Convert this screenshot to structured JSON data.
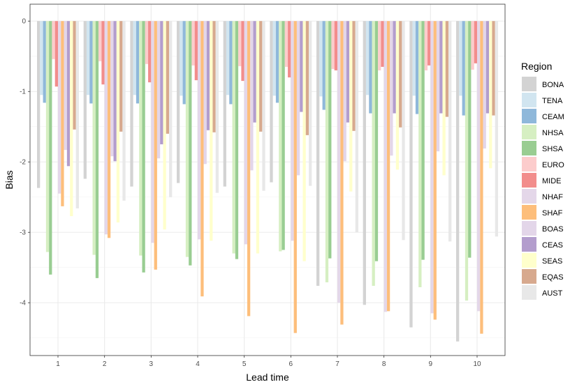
{
  "chart_data": {
    "type": "bar",
    "xlabel": "Lead time",
    "ylabel": "Bias",
    "categories": [
      "1",
      "2",
      "3",
      "4",
      "5",
      "6",
      "7",
      "8",
      "9",
      "10"
    ],
    "yticks": [
      0,
      -1,
      -2,
      -3,
      -4
    ],
    "ytick_labels": [
      "0",
      "-1",
      "-2",
      "-3",
      "-4"
    ],
    "ylim": [
      -4.75,
      0.24
    ],
    "grid": true,
    "legend": {
      "title": "Region",
      "placement": "right"
    },
    "series": [
      {
        "name": "BONA",
        "color": "#d3d3d3",
        "values": [
          -2.37,
          -2.24,
          -2.35,
          -2.3,
          -2.35,
          -2.29,
          -3.76,
          -4.03,
          -4.35,
          -4.55
        ]
      },
      {
        "name": "TENA",
        "color": "#d1e5f0",
        "values": [
          -1.05,
          -1.05,
          -1.05,
          -1.06,
          -1.05,
          -1.06,
          -1.07,
          -1.05,
          -1.06,
          -1.06
        ]
      },
      {
        "name": "CEAM",
        "color": "#8fb8da",
        "values": [
          -1.16,
          -1.17,
          -1.17,
          -1.18,
          -1.18,
          -1.16,
          -1.26,
          -1.31,
          -1.32,
          -1.34
        ]
      },
      {
        "name": "NHSA",
        "color": "#d6efc2",
        "values": [
          -3.28,
          -3.32,
          -3.33,
          -3.35,
          -3.3,
          -3.27,
          -3.71,
          -3.76,
          -3.78,
          -3.97
        ]
      },
      {
        "name": "SHSA",
        "color": "#99cd92",
        "values": [
          -3.6,
          -3.65,
          -3.57,
          -3.47,
          -3.38,
          -3.25,
          -3.37,
          -3.41,
          -3.39,
          -3.36
        ]
      },
      {
        "name": "EURO",
        "color": "#fccccc",
        "values": [
          -0.54,
          -0.57,
          -0.61,
          -0.63,
          -0.64,
          -0.65,
          -0.68,
          -0.7,
          -0.7,
          -0.69
        ]
      },
      {
        "name": "MIDE",
        "color": "#f28d8c",
        "values": [
          -0.93,
          -0.9,
          -0.87,
          -0.84,
          -0.85,
          -0.8,
          -0.7,
          -0.65,
          -0.63,
          -0.6
        ]
      },
      {
        "name": "NHAF",
        "color": "#e4d7e9",
        "values": [
          -2.45,
          -3.03,
          -3.15,
          -3.1,
          -3.17,
          -3.12,
          -4.0,
          -4.13,
          -4.15,
          -4.12
        ]
      },
      {
        "name": "SHAF",
        "color": "#fdbe7b",
        "values": [
          -2.63,
          -3.08,
          -3.53,
          -3.91,
          -4.19,
          -4.43,
          -4.31,
          -4.12,
          -4.24,
          -4.44
        ]
      },
      {
        "name": "BOAS",
        "color": "#e3d6e9",
        "values": [
          -1.83,
          -1.92,
          -1.95,
          -2.03,
          -2.12,
          -2.19,
          -1.99,
          -1.91,
          -1.85,
          -1.81
        ]
      },
      {
        "name": "CEAS",
        "color": "#b39dcd",
        "values": [
          -2.06,
          -1.99,
          -1.75,
          -1.55,
          -1.44,
          -1.29,
          -1.44,
          -1.31,
          -1.31,
          -1.31
        ]
      },
      {
        "name": "SEAS",
        "color": "#ffffcc",
        "values": [
          -2.77,
          -2.86,
          -2.96,
          -3.12,
          -3.3,
          -3.41,
          -2.42,
          -2.11,
          -2.19,
          -2.09
        ]
      },
      {
        "name": "EQAS",
        "color": "#d7a98e",
        "values": [
          -1.54,
          -1.57,
          -1.6,
          -1.58,
          -1.57,
          -1.62,
          -1.56,
          -1.51,
          -1.36,
          -1.34
        ]
      },
      {
        "name": "AUST",
        "color": "#e8e8e8",
        "values": [
          -2.66,
          -2.55,
          -2.5,
          -2.44,
          -2.41,
          -2.34,
          -3.0,
          -3.11,
          -3.13,
          -3.06
        ]
      }
    ]
  }
}
